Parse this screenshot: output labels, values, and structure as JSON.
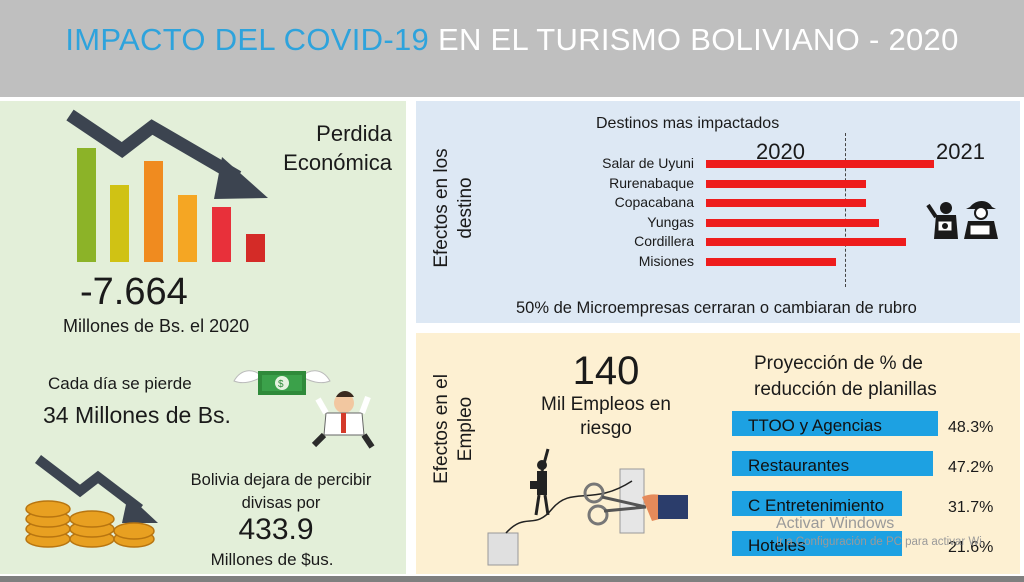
{
  "header": {
    "title_part1": "IMPACTO DEL COVID-19",
    "title_part2": " EN EL TURISMO BOLIVIANO - 2020"
  },
  "colors": {
    "header_bg": "#bfbfbf",
    "title_accent": "#2ea3dc",
    "left_panel": "#e3efd9",
    "top_right_panel": "#dde8f4",
    "bottom_right_panel": "#fdf0d2",
    "destination_bar": "#ee1c1c",
    "employment_bar": "#1da1e2"
  },
  "left_panel": {
    "loss_title_line1": "Perdida",
    "loss_title_line2": "Económica",
    "loss_value": "-7.664",
    "loss_unit": "Millones de Bs. el 2020",
    "daily_line1": "Cada día se pierde",
    "daily_line2": "34 Millones de Bs.",
    "forex_line1": "Bolivia dejara de percibir",
    "forex_line2": "divisas por",
    "forex_value": "433.9",
    "forex_unit": "Millones de $us.",
    "icons": [
      "declining-bar-chart-icon",
      "flying-money-icon",
      "distressed-businessman-icon",
      "coins-decline-icon"
    ]
  },
  "destinations": {
    "side_label_line1": "Efectos en los",
    "side_label_line2": "destino",
    "chart_title": "Destinos mas impactados",
    "year_left": "2020",
    "year_right": "2021",
    "items": [
      {
        "name": "Salar de Uyuni",
        "value": 0.91
      },
      {
        "name": "Rurenabaque",
        "value": 0.64
      },
      {
        "name": "Copacabana",
        "value": 0.64
      },
      {
        "name": "Yungas",
        "value": 0.69
      },
      {
        "name": "Cordillera",
        "value": 0.8
      },
      {
        "name": "Misiones",
        "value": 0.52
      }
    ],
    "footnote": "50% de Microempresas cerraran o cambiaran de rubro",
    "icons": [
      "tourists-icon"
    ]
  },
  "employment": {
    "side_label_line1": "Efectos en el",
    "side_label_line2": "Empleo",
    "jobs_value": "140",
    "jobs_line1": "Mil Empleos en",
    "jobs_line2": "riesgo",
    "projection_line1": "Proyección de % de",
    "projection_line2": "reducción de planillas",
    "sectors": [
      {
        "name": "TTOO y Agencias",
        "pct": "48.3%",
        "value": 48.3
      },
      {
        "name": "Restaurantes",
        "pct": "47.2%",
        "value": 47.2
      },
      {
        "name": "C Entretenimiento",
        "pct": "31.7%",
        "value": 31.7
      },
      {
        "name": "Hoteles",
        "pct": "21.6%",
        "value": 21.6
      }
    ],
    "icons": [
      "businessman-scissors-icon"
    ]
  },
  "watermark": {
    "line1": "Activar Windows",
    "line2": "Ir a Configuración de PC para activar Wi"
  }
}
